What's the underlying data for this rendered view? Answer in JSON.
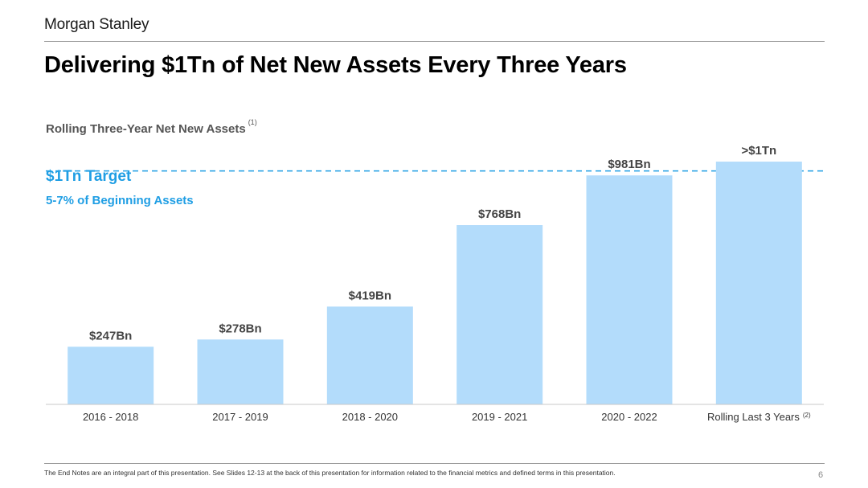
{
  "header": {
    "brand": "Morgan Stanley",
    "title": "Delivering $1Tn of Net New Assets Every Three Years"
  },
  "chart_data": {
    "type": "bar",
    "title": "Rolling Three-Year Net New Assets",
    "title_note": "(1)",
    "categories": [
      "2016 - 2018",
      "2017 - 2019",
      "2018 - 2020",
      "2019 - 2021",
      "2020 - 2022",
      "Rolling Last 3 Years"
    ],
    "category_notes": [
      "",
      "",
      "",
      "",
      "",
      "(2)"
    ],
    "values": [
      247,
      278,
      419,
      768,
      981,
      1040
    ],
    "value_labels": [
      "$247Bn",
      "$278Bn",
      "$419Bn",
      "$768Bn",
      "$981Bn",
      ">$1Tn"
    ],
    "unit": "$Bn",
    "ylim": [
      0,
      1140
    ],
    "grid": false,
    "bar_color": "#b3dcfb",
    "target": {
      "value": 1000,
      "label": "$1Tn Target",
      "sublabel": "5-7% of Beginning Assets",
      "color": "#1f9ee4"
    }
  },
  "footer": {
    "note": "The End Notes are an integral part of this presentation. See Slides 12-13 at the back of this presentation for information related to the financial metrics and defined terms in this presentation.",
    "page": "6"
  }
}
